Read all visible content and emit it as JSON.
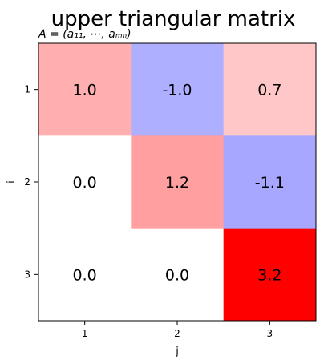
{
  "chart_data": {
    "type": "heatmap",
    "title": "upper triangular matrix",
    "subtitle": "A = (a₁₁, ⋯, aₘₙ)",
    "xlabel": "j",
    "ylabel": "i",
    "x_ticks": [
      "1",
      "2",
      "3"
    ],
    "y_ticks": [
      "1",
      "2",
      "3"
    ],
    "values": [
      [
        1.0,
        -1.0,
        0.7
      ],
      [
        0.0,
        1.2,
        -1.1
      ],
      [
        0.0,
        0.0,
        3.2
      ]
    ],
    "cell_labels": [
      [
        "1.0",
        "-1.0",
        "0.7"
      ],
      [
        "0.0",
        "1.2",
        "-1.1"
      ],
      [
        "0.0",
        "0.0",
        "3.2"
      ]
    ],
    "colormap": "bwr",
    "color_range": [
      -3.2,
      3.2
    ],
    "grid": false
  }
}
